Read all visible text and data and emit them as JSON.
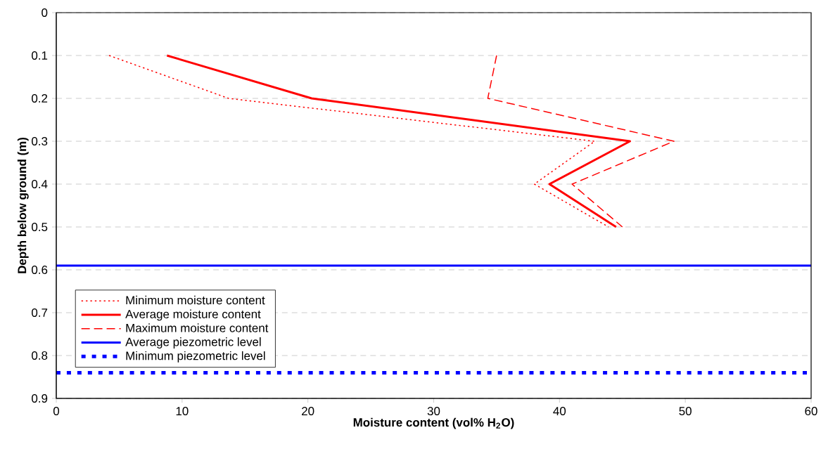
{
  "chart_data": {
    "type": "line",
    "xlabel": "Moisture content (vol% H$_{2}$O)",
    "ylabel": "Depth below ground (m)",
    "xlim": [
      0,
      60
    ],
    "xticks": [
      0,
      10,
      20,
      30,
      40,
      50,
      60
    ],
    "ylim": [
      0.9,
      0
    ],
    "yticks": [
      0,
      0.1,
      0.2,
      0.3,
      0.4,
      0.5,
      0.6,
      0.7,
      0.8,
      0.9
    ],
    "grid": "y",
    "legend": "bottom left",
    "series": [
      {
        "name": "Minimum moisture content",
        "color": "#ff0000",
        "line_style": "dotted",
        "x": [
          4.2,
          13.7,
          42.8,
          38.0,
          43.9
        ],
        "values": [
          0.1,
          0.2,
          0.3,
          0.4,
          0.5
        ]
      },
      {
        "name": "Average moisture content",
        "color": "#ff0000",
        "line_style": "solid",
        "x": [
          8.8,
          20.3,
          45.6,
          39.2,
          44.5
        ],
        "values": [
          0.1,
          0.2,
          0.3,
          0.4,
          0.5
        ]
      },
      {
        "name": "Maximum moisture content",
        "color": "#ff0000",
        "line_style": "dashed",
        "x": [
          35.0,
          34.3,
          49.1,
          41.0,
          45.0
        ],
        "values": [
          0.1,
          0.2,
          0.3,
          0.4,
          0.5
        ]
      }
    ],
    "ref_lines": [
      {
        "axis": "y",
        "value": 0.59,
        "label": "Average piezometric level",
        "color": "#0000ff",
        "line_style": "solid"
      },
      {
        "axis": "y",
        "value": 0.84,
        "label": "Minimum piezometric level",
        "color": "#0000ff",
        "line_style": "dotted"
      }
    ]
  }
}
